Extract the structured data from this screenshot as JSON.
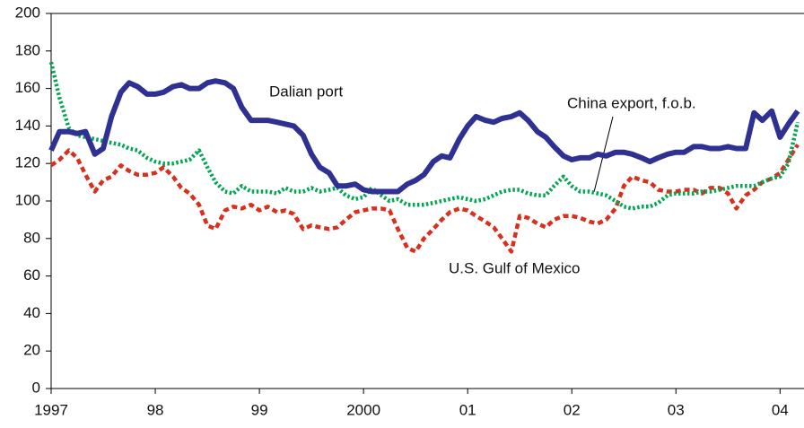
{
  "chart_data": {
    "type": "line",
    "x": [
      1997,
      1997.08,
      1997.17,
      1997.25,
      1997.33,
      1997.42,
      1997.5,
      1997.58,
      1997.67,
      1997.75,
      1997.83,
      1997.92,
      1998,
      1998.08,
      1998.17,
      1998.25,
      1998.33,
      1998.42,
      1998.5,
      1998.58,
      1998.67,
      1998.75,
      1998.83,
      1998.92,
      1999,
      1999.08,
      1999.17,
      1999.25,
      1999.33,
      1999.42,
      1999.5,
      1999.58,
      1999.67,
      1999.75,
      1999.83,
      1999.92,
      2000,
      2000.08,
      2000.17,
      2000.25,
      2000.33,
      2000.42,
      2000.5,
      2000.58,
      2000.67,
      2000.75,
      2000.83,
      2000.92,
      2001,
      2001.08,
      2001.17,
      2001.25,
      2001.33,
      2001.42,
      2001.5,
      2001.58,
      2001.67,
      2001.75,
      2001.83,
      2001.92,
      2002,
      2002.08,
      2002.17,
      2002.25,
      2002.33,
      2002.42,
      2002.5,
      2002.58,
      2002.67,
      2002.75,
      2002.83,
      2002.92,
      2003,
      2003.08,
      2003.17,
      2003.25,
      2003.33,
      2003.42,
      2003.5,
      2003.58,
      2003.67,
      2003.75,
      2003.83,
      2003.92,
      2004,
      2004.08,
      2004.17
    ],
    "series": [
      {
        "name": "Dalian port",
        "color": "#2e3192",
        "line_style": "solid",
        "values": [
          127,
          137,
          137,
          136,
          137,
          125,
          128,
          145,
          158,
          163,
          161,
          157,
          157,
          158,
          161,
          162,
          160,
          160,
          163,
          164,
          163,
          160,
          150,
          143,
          143,
          143,
          142,
          141,
          140,
          135,
          125,
          118,
          115,
          108,
          108,
          109,
          106,
          105,
          105,
          105,
          105,
          109,
          111,
          114,
          121,
          124,
          123,
          133,
          140,
          145,
          143,
          142,
          144,
          145,
          147,
          143,
          137,
          134,
          129,
          124,
          122,
          123,
          123,
          125,
          124,
          126,
          126,
          125,
          123,
          121,
          123,
          125,
          126,
          126,
          129,
          129,
          128,
          128,
          129,
          128,
          128,
          147,
          143,
          148,
          134,
          141,
          148
        ]
      },
      {
        "name": "China export, f.o.b.",
        "color": "#00a651",
        "line_style": "dotted",
        "values": [
          174,
          155,
          139,
          135,
          134,
          133,
          132,
          131,
          130,
          128,
          127,
          123,
          121,
          120,
          120,
          121,
          122,
          127,
          118,
          110,
          105,
          104,
          108,
          105,
          105,
          105,
          104,
          107,
          105,
          105,
          107,
          105,
          106,
          107,
          103,
          101,
          102,
          107,
          103,
          100,
          101,
          98,
          98,
          98,
          99,
          100,
          101,
          102,
          101,
          100,
          101,
          103,
          105,
          106,
          106,
          104,
          103,
          103,
          108,
          113,
          108,
          105,
          105,
          104,
          103,
          100,
          97,
          96,
          97,
          97,
          99,
          103,
          104,
          104,
          104,
          105,
          105,
          106,
          107,
          108,
          108,
          108,
          110,
          112,
          113,
          120,
          142
        ]
      },
      {
        "name": "U.S. Gulf of Mexico",
        "color": "#d7301f",
        "line_style": "dashed",
        "values": [
          119,
          122,
          127,
          123,
          114,
          105,
          111,
          113,
          119,
          116,
          114,
          114,
          115,
          118,
          113,
          107,
          104,
          98,
          87,
          85,
          95,
          97,
          96,
          98,
          95,
          97,
          94,
          95,
          93,
          85,
          87,
          86,
          85,
          86,
          90,
          94,
          95,
          96,
          96,
          95,
          85,
          75,
          73,
          80,
          85,
          90,
          94,
          96,
          95,
          92,
          89,
          86,
          80,
          73,
          92,
          91,
          88,
          86,
          90,
          92,
          92,
          91,
          89,
          88,
          90,
          96,
          108,
          113,
          111,
          110,
          106,
          105,
          105,
          106,
          106,
          104,
          107,
          107,
          104,
          96,
          103,
          106,
          110,
          112,
          115,
          122,
          130
        ]
      }
    ],
    "xlim": [
      1997,
      2004.23
    ],
    "xticks": [
      1997,
      {
        "value": 1998,
        "label": "98"
      },
      {
        "value": 1999,
        "label": "99"
      },
      2000,
      {
        "value": 2001,
        "label": "01"
      },
      {
        "value": 2002,
        "label": "02"
      },
      {
        "value": 2003,
        "label": "03"
      },
      {
        "value": 2004,
        "label": "04"
      }
    ],
    "ylim": [
      0,
      200
    ],
    "yticks": [
      0,
      20,
      40,
      60,
      80,
      100,
      120,
      140,
      160,
      180,
      200
    ],
    "grid": false
  }
}
